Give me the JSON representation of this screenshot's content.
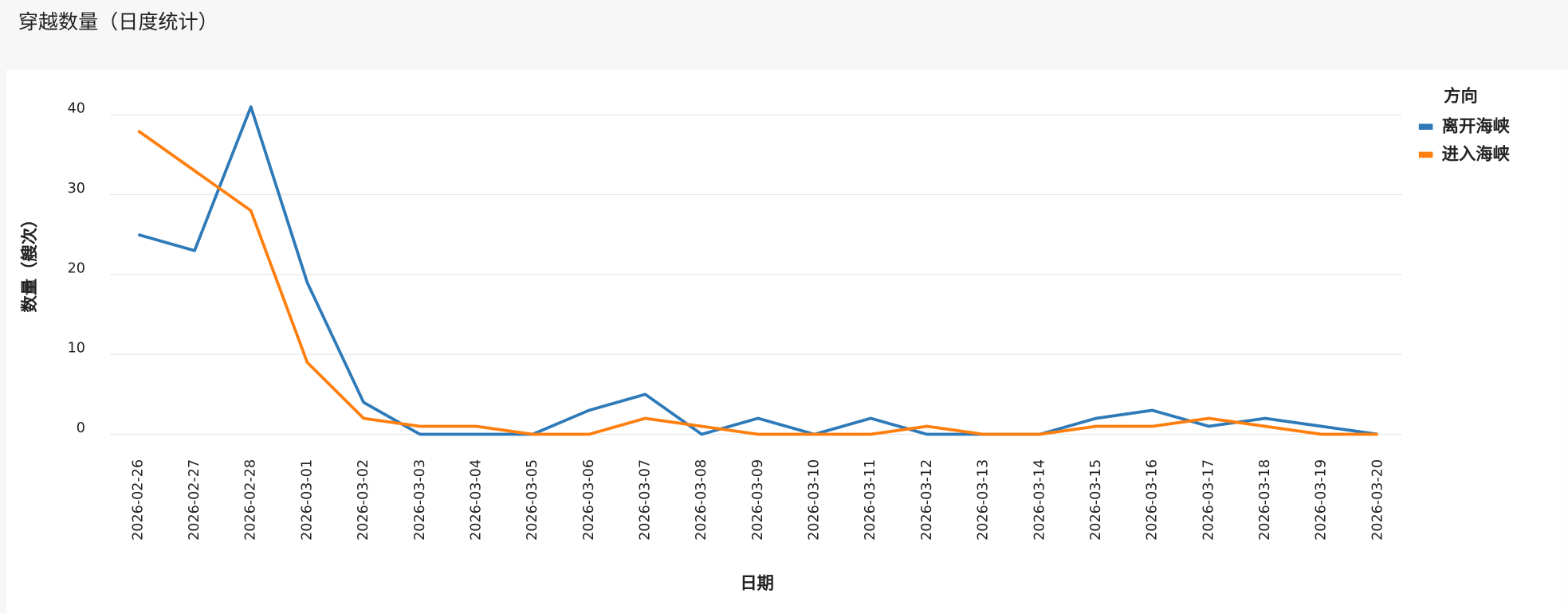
{
  "chart_data": {
    "type": "line",
    "title": "穿越数量（日度统计）",
    "x_label": "日期",
    "y_label": "数量（艘次）",
    "legend_title": "方向",
    "legend_position": "right",
    "categories": [
      "2026-02-26",
      "2026-02-27",
      "2026-02-28",
      "2026-03-01",
      "2026-03-02",
      "2026-03-03",
      "2026-03-04",
      "2026-03-05",
      "2026-03-06",
      "2026-03-07",
      "2026-03-08",
      "2026-03-09",
      "2026-03-10",
      "2026-03-11",
      "2026-03-12",
      "2026-03-13",
      "2026-03-14",
      "2026-03-15",
      "2026-03-16",
      "2026-03-17",
      "2026-03-18",
      "2026-03-19",
      "2026-03-20"
    ],
    "series": [
      {
        "name": "离开海峡",
        "color": "#2e7ab8",
        "values": [
          25,
          23,
          41,
          19,
          4,
          0,
          0,
          0,
          3,
          5,
          0,
          2,
          0,
          2,
          0,
          0,
          0,
          2,
          3,
          1,
          2,
          1,
          0
        ]
      },
      {
        "name": "进入海峡",
        "color": "#ff7f0e",
        "values": [
          38,
          33,
          28,
          9,
          2,
          1,
          1,
          0,
          0,
          2,
          1,
          0,
          0,
          0,
          1,
          0,
          0,
          1,
          1,
          2,
          1,
          0,
          0
        ]
      }
    ],
    "ylim": [
      0,
      42
    ],
    "yticks": [
      0,
      10,
      20,
      30,
      40
    ],
    "grid": true
  }
}
